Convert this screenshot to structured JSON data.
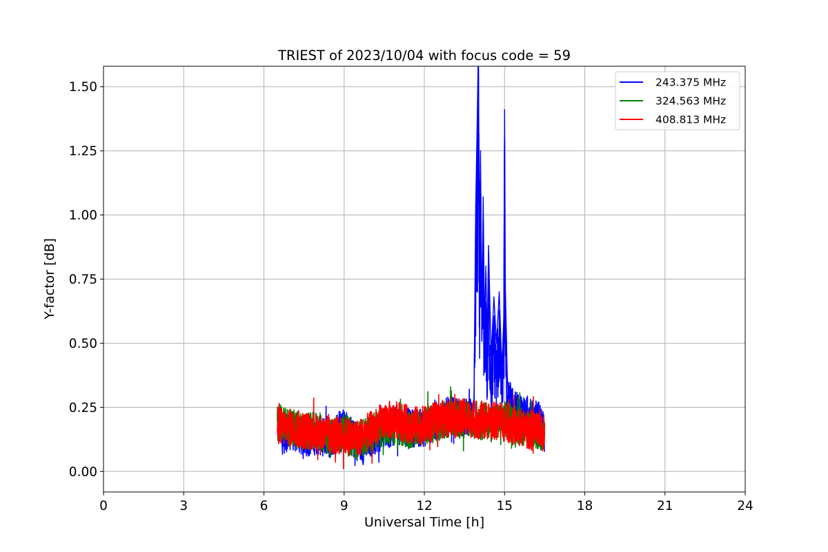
{
  "chart_data": {
    "type": "line",
    "title": "TRIEST of 2023/10/04 with focus code = 59",
    "xlabel": "Universal Time [h]",
    "ylabel": "Y-factor [dB]",
    "xlim": [
      0,
      24
    ],
    "ylim": [
      -0.08,
      1.58
    ],
    "x_ticks": [
      0,
      3,
      6,
      9,
      12,
      15,
      18,
      21,
      24
    ],
    "x_tick_labels": [
      "0",
      "3",
      "6",
      "9",
      "12",
      "15",
      "18",
      "21",
      "24"
    ],
    "y_ticks": [
      0.0,
      0.25,
      0.5,
      0.75,
      1.0,
      1.25,
      1.5
    ],
    "y_tick_labels": [
      "0.00",
      "0.25",
      "0.50",
      "0.75",
      "1.00",
      "1.25",
      "1.50"
    ],
    "grid": true,
    "legend_position": "top-right",
    "series": [
      {
        "name": "243.375 MHz",
        "color": "#0000ff",
        "x": [
          6.5,
          6.7,
          7.0,
          7.5,
          8.0,
          8.5,
          8.9,
          9.3,
          9.7,
          10.1,
          10.5,
          11.0,
          11.5,
          12.0,
          12.5,
          13.0,
          13.5,
          13.85,
          13.92,
          13.98,
          14.02,
          14.06,
          14.1,
          14.15,
          14.2,
          14.25,
          14.3,
          14.35,
          14.4,
          14.5,
          14.6,
          14.7,
          14.8,
          14.9,
          14.97,
          15.0,
          15.03,
          15.1,
          15.15,
          15.3,
          15.6,
          16.0,
          16.3,
          16.5
        ],
        "y": [
          0.2,
          0.14,
          0.16,
          0.13,
          0.14,
          0.12,
          0.19,
          0.13,
          0.1,
          0.14,
          0.16,
          0.18,
          0.17,
          0.17,
          0.2,
          0.22,
          0.21,
          0.22,
          1.03,
          1.38,
          1.66,
          0.9,
          1.25,
          0.6,
          1.07,
          0.55,
          0.8,
          0.5,
          0.88,
          0.45,
          0.68,
          0.5,
          0.7,
          0.4,
          0.6,
          1.41,
          0.72,
          0.38,
          0.28,
          0.25,
          0.22,
          0.21,
          0.2,
          0.15
        ]
      },
      {
        "name": "324.563 MHz",
        "color": "#008000",
        "x": [
          6.5,
          7.0,
          7.5,
          8.0,
          8.5,
          9.0,
          9.5,
          10.0,
          10.5,
          11.0,
          11.5,
          12.0,
          12.5,
          13.0,
          13.5,
          14.0,
          14.5,
          15.0,
          15.5,
          16.0,
          16.5
        ],
        "y": [
          0.19,
          0.17,
          0.15,
          0.16,
          0.13,
          0.15,
          0.12,
          0.15,
          0.18,
          0.17,
          0.16,
          0.18,
          0.19,
          0.21,
          0.2,
          0.2,
          0.19,
          0.2,
          0.18,
          0.17,
          0.14
        ]
      },
      {
        "name": "408.813 MHz",
        "color": "#ff0000",
        "x": [
          6.5,
          7.0,
          7.5,
          8.0,
          8.5,
          9.0,
          9.5,
          10.0,
          10.5,
          11.0,
          11.5,
          12.0,
          12.5,
          13.0,
          13.5,
          14.0,
          14.5,
          15.0,
          15.5,
          16.0,
          16.5
        ],
        "y": [
          0.18,
          0.17,
          0.16,
          0.15,
          0.14,
          0.14,
          0.13,
          0.16,
          0.2,
          0.2,
          0.18,
          0.18,
          0.2,
          0.21,
          0.21,
          0.2,
          0.2,
          0.19,
          0.17,
          0.16,
          0.15
        ]
      }
    ]
  }
}
